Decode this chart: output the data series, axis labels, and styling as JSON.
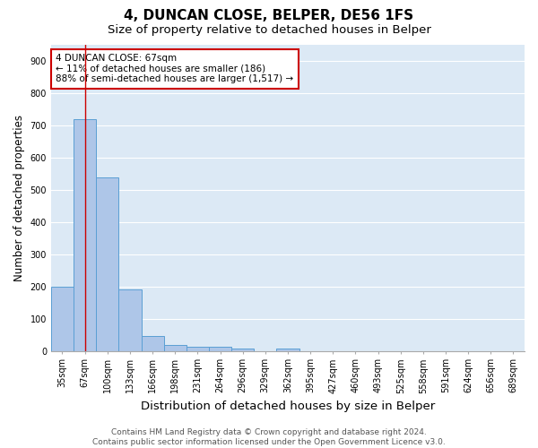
{
  "title": "4, DUNCAN CLOSE, BELPER, DE56 1FS",
  "subtitle": "Size of property relative to detached houses in Belper",
  "xlabel": "Distribution of detached houses by size in Belper",
  "ylabel": "Number of detached properties",
  "categories": [
    "35sqm",
    "67sqm",
    "100sqm",
    "133sqm",
    "166sqm",
    "198sqm",
    "231sqm",
    "264sqm",
    "296sqm",
    "329sqm",
    "362sqm",
    "395sqm",
    "427sqm",
    "460sqm",
    "493sqm",
    "525sqm",
    "558sqm",
    "591sqm",
    "624sqm",
    "656sqm",
    "689sqm"
  ],
  "values": [
    200,
    720,
    537,
    192,
    46,
    19,
    13,
    12,
    8,
    0,
    8,
    0,
    0,
    0,
    0,
    0,
    0,
    0,
    0,
    0,
    0
  ],
  "bar_color": "#aec6e8",
  "bar_edge_color": "#5a9fd4",
  "background_color": "#dce9f5",
  "grid_color": "#ffffff",
  "annotation_line1": "4 DUNCAN CLOSE: 67sqm",
  "annotation_line2": "← 11% of detached houses are smaller (186)",
  "annotation_line3": "88% of semi-detached houses are larger (1,517) →",
  "vline_x_index": 1,
  "vline_color": "#cc0000",
  "ylim": [
    0,
    950
  ],
  "yticks": [
    0,
    100,
    200,
    300,
    400,
    500,
    600,
    700,
    800,
    900
  ],
  "footer_line1": "Contains HM Land Registry data © Crown copyright and database right 2024.",
  "footer_line2": "Contains public sector information licensed under the Open Government Licence v3.0.",
  "title_fontsize": 11,
  "subtitle_fontsize": 9.5,
  "xlabel_fontsize": 9.5,
  "ylabel_fontsize": 8.5,
  "tick_fontsize": 7,
  "annotation_fontsize": 7.5,
  "footer_fontsize": 6.5
}
